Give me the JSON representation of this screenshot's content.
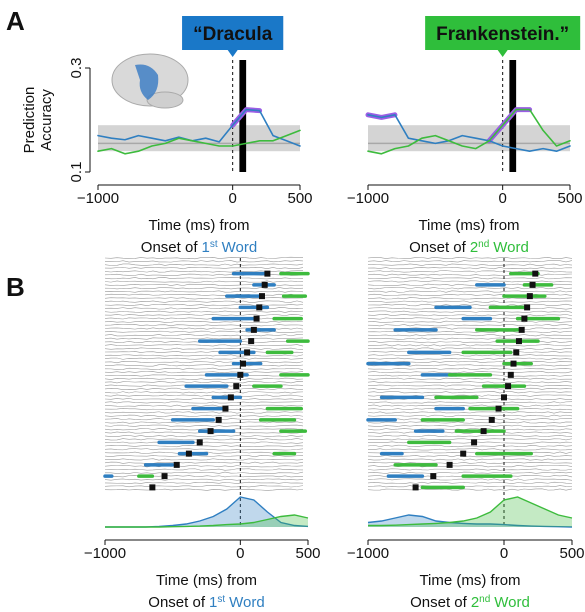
{
  "panel_labels": [
    "A",
    "B"
  ],
  "chart_data": [
    {
      "type": "line",
      "callout": "“Dracula",
      "callout_color": "#1a78c8",
      "ylabel": [
        "Prediction",
        "Accuracy"
      ],
      "x": [
        -1000,
        -900,
        -800,
        -700,
        -600,
        -500,
        -400,
        -300,
        -200,
        -100,
        0,
        100,
        200,
        300,
        400,
        500
      ],
      "series": [
        {
          "color": "#9b5de5",
          "width": 5,
          "values": [
            null,
            null,
            null,
            null,
            null,
            null,
            null,
            null,
            null,
            null,
            0.19,
            0.22,
            0.218,
            null,
            null,
            null
          ]
        },
        {
          "color": "#2f7fc1",
          "width": 1.6,
          "values": [
            0.17,
            0.165,
            0.162,
            0.17,
            0.165,
            0.16,
            0.167,
            0.16,
            0.165,
            0.158,
            0.19,
            0.22,
            0.218,
            0.17,
            0.16,
            0.15
          ]
        },
        {
          "color": "#3dbb3d",
          "width": 1.6,
          "values": [
            0.14,
            0.145,
            0.135,
            0.14,
            0.15,
            0.155,
            0.165,
            0.16,
            0.155,
            0.15,
            0.15,
            0.155,
            0.16,
            0.16,
            0.17,
            0.18
          ]
        }
      ],
      "band": {
        "low": 0.14,
        "high": 0.19,
        "mid": 0.155
      },
      "xlim": [
        -1000,
        500
      ],
      "ylim": [
        0.1,
        0.3
      ],
      "xticks": [
        {
          "value": -1000,
          "label": "−1000"
        },
        0,
        500
      ],
      "yticks": [
        0.1,
        0.3
      ],
      "reference_x": 0,
      "onset_bar": [
        50,
        100
      ],
      "xlabel": {
        "line1": "Time (ms) from",
        "prefix": "Onset of",
        "ordinal": "1",
        "suffix": "st",
        "word": "Word",
        "color": "#2f7fc1"
      }
    },
    {
      "type": "line",
      "callout": "Frankenstein.”",
      "callout_color": "#2fbe3b",
      "x": [
        -1000,
        -900,
        -800,
        -700,
        -600,
        -500,
        -400,
        -300,
        -200,
        -100,
        0,
        100,
        200,
        300,
        400,
        500
      ],
      "series": [
        {
          "color": "#9b5de5",
          "width": 5,
          "values": [
            0.21,
            0.205,
            0.21,
            null,
            null,
            null,
            null,
            null,
            null,
            0.16,
            0.19,
            0.22,
            0.22,
            null,
            null,
            null
          ]
        },
        {
          "color": "#2f7fc1",
          "width": 1.6,
          "values": [
            0.21,
            0.205,
            0.21,
            0.165,
            0.16,
            0.155,
            0.16,
            0.17,
            0.165,
            0.16,
            0.15,
            0.145,
            0.14,
            0.145,
            0.14,
            0.15
          ]
        },
        {
          "color": "#3dbb3d",
          "width": 1.6,
          "values": [
            0.14,
            0.135,
            0.145,
            0.15,
            0.165,
            0.17,
            0.16,
            0.15,
            0.145,
            0.16,
            0.19,
            0.22,
            0.22,
            0.18,
            0.15,
            0.16
          ]
        }
      ],
      "band": {
        "low": 0.14,
        "high": 0.19,
        "mid": 0.155
      },
      "xlim": [
        -1000,
        500
      ],
      "ylim": [
        0.1,
        0.3
      ],
      "xticks": [
        {
          "value": -1000,
          "label": "−1000"
        },
        0,
        500
      ],
      "reference_x": 0,
      "onset_bar": [
        50,
        100
      ],
      "xlabel": {
        "line1": "Time (ms) from",
        "prefix": "Onset of",
        "ordinal": "2",
        "suffix": "nd",
        "word": "Word",
        "color": "#2fbe3b"
      }
    },
    {
      "type": "raster",
      "xlim": [
        -1000,
        500
      ],
      "xticks": [
        {
          "value": -1000,
          "label": "−1000"
        },
        0,
        500
      ],
      "reference_x": 0,
      "blue_color": "#2f7fc1",
      "green_color": "#3dbb3d",
      "marks": [
        200,
        180,
        160,
        140,
        120,
        100,
        80,
        50,
        20,
        0,
        -30,
        -70,
        -110,
        -160,
        -220,
        -300,
        -380,
        -470,
        -560,
        -650
      ],
      "blue": [
        [
          -50,
          200
        ],
        [
          100,
          250
        ],
        [
          -100,
          150
        ],
        [
          0,
          200
        ],
        [
          -200,
          100
        ],
        [
          50,
          250
        ],
        [
          -300,
          0
        ],
        [
          -150,
          100
        ],
        [
          -50,
          150
        ],
        [
          -250,
          50
        ],
        [
          -400,
          -100
        ],
        [
          -200,
          0
        ],
        [
          -350,
          -100
        ],
        [
          -500,
          -200
        ],
        [
          -300,
          -50
        ],
        [
          -600,
          -350
        ],
        [
          -450,
          -250
        ],
        [
          -700,
          -500
        ],
        [
          -1000,
          -950
        ],
        null
      ],
      "green": [
        [
          300,
          500
        ],
        null,
        [
          320,
          480
        ],
        null,
        [
          250,
          450
        ],
        null,
        [
          350,
          500
        ],
        [
          200,
          380
        ],
        null,
        [
          300,
          500
        ],
        [
          100,
          300
        ],
        null,
        [
          200,
          450
        ],
        [
          150,
          400
        ],
        [
          300,
          480
        ],
        null,
        [
          250,
          400
        ],
        null,
        [
          -750,
          -650
        ],
        null
      ],
      "density": {
        "x": [
          -1000,
          -900,
          -800,
          -700,
          -600,
          -500,
          -400,
          -300,
          -200,
          -100,
          0,
          100,
          200,
          300,
          400,
          500
        ],
        "series": [
          {
            "color": "#2f7fc1",
            "values": [
              0,
              0,
              0,
              0,
              0.02,
              0.05,
              0.1,
              0.2,
              0.35,
              0.6,
              1.0,
              0.9,
              0.5,
              0.15,
              0.05,
              0.02
            ]
          },
          {
            "color": "#3dbb3d",
            "values": [
              0,
              0,
              0,
              0,
              0,
              0.01,
              0.02,
              0.03,
              0.05,
              0.08,
              0.1,
              0.15,
              0.25,
              0.35,
              0.4,
              0.3
            ]
          }
        ]
      },
      "xlabel": {
        "line1": "Time (ms) from",
        "prefix": "Onset of",
        "ordinal": "1",
        "suffix": "st",
        "word": "Word",
        "color": "#2f7fc1"
      }
    },
    {
      "type": "raster",
      "xlim": [
        -1000,
        500
      ],
      "xticks": [
        {
          "value": -1000,
          "label": "−1000"
        },
        0,
        500
      ],
      "reference_x": 0,
      "blue_color": "#2f7fc1",
      "green_color": "#3dbb3d",
      "marks": [
        230,
        210,
        190,
        170,
        150,
        130,
        110,
        90,
        70,
        50,
        30,
        0,
        -40,
        -90,
        -150,
        -220,
        -300,
        -400,
        -520,
        -650
      ],
      "blue": [
        null,
        [
          -200,
          0
        ],
        null,
        [
          -500,
          -250
        ],
        [
          -300,
          -100
        ],
        [
          -800,
          -500
        ],
        null,
        [
          -700,
          -400
        ],
        [
          -1000,
          -700
        ],
        [
          -600,
          -350
        ],
        null,
        [
          -900,
          -600
        ],
        [
          -500,
          -300
        ],
        [
          -1000,
          -800
        ],
        [
          -650,
          -450
        ],
        null,
        [
          -900,
          -750
        ],
        null,
        [
          -850,
          -600
        ],
        null
      ],
      "green": [
        [
          50,
          250
        ],
        [
          150,
          350
        ],
        [
          0,
          300
        ],
        [
          -100,
          150
        ],
        [
          100,
          400
        ],
        [
          -200,
          100
        ],
        [
          -50,
          250
        ],
        [
          -300,
          50
        ],
        [
          0,
          200
        ],
        [
          -400,
          -100
        ],
        [
          -150,
          150
        ],
        [
          -500,
          -200
        ],
        [
          -250,
          100
        ],
        [
          -600,
          -300
        ],
        [
          -350,
          0
        ],
        [
          -700,
          -400
        ],
        [
          -200,
          200
        ],
        [
          -800,
          -500
        ],
        [
          -300,
          50
        ],
        [
          -600,
          -300
        ]
      ],
      "density": {
        "x": [
          -1000,
          -900,
          -800,
          -700,
          -600,
          -500,
          -400,
          -300,
          -200,
          -100,
          0,
          100,
          200,
          300,
          400,
          500
        ],
        "series": [
          {
            "color": "#2f7fc1",
            "values": [
              0.15,
              0.2,
              0.3,
              0.4,
              0.35,
              0.2,
              0.15,
              0.12,
              0.1,
              0.1,
              0.08,
              0.05,
              0.03,
              0.02,
              0.01,
              0
            ]
          },
          {
            "color": "#3dbb3d",
            "values": [
              0.05,
              0.05,
              0.06,
              0.08,
              0.1,
              0.12,
              0.15,
              0.2,
              0.3,
              0.5,
              0.9,
              1.0,
              0.8,
              0.6,
              0.4,
              0.3
            ]
          }
        ]
      },
      "xlabel": {
        "line1": "Time (ms) from",
        "prefix": "Onset of",
        "ordinal": "2",
        "suffix": "nd",
        "word": "Word",
        "color": "#2fbe3b"
      }
    }
  ]
}
